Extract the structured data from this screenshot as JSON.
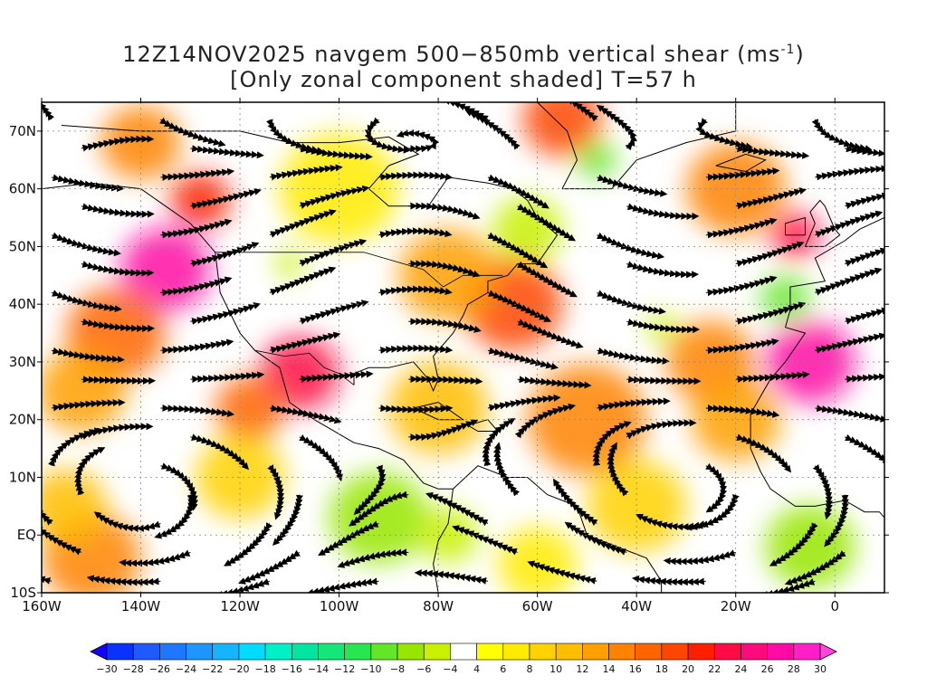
{
  "title": {
    "line1_prefix": "12Z14NOV2025 navgem 500−850mb vertical shear (ms",
    "line1_sup": "-1",
    "line1_suffix": ")",
    "line2": "[Only zonal component shaded] T=57 h"
  },
  "map": {
    "lon_range": [
      -160,
      10
    ],
    "lat_range": [
      -10,
      75
    ],
    "x_ticks": [
      {
        "value": -160,
        "label": "160W"
      },
      {
        "value": -140,
        "label": "140W"
      },
      {
        "value": -120,
        "label": "120W"
      },
      {
        "value": -100,
        "label": "100W"
      },
      {
        "value": -80,
        "label": "80W"
      },
      {
        "value": -60,
        "label": "60W"
      },
      {
        "value": -40,
        "label": "40W"
      },
      {
        "value": -20,
        "label": "20W"
      },
      {
        "value": 0,
        "label": "0"
      }
    ],
    "y_ticks": [
      {
        "value": 70,
        "label": "70N"
      },
      {
        "value": 60,
        "label": "60N"
      },
      {
        "value": 50,
        "label": "50N"
      },
      {
        "value": 40,
        "label": "40N"
      },
      {
        "value": 30,
        "label": "30N"
      },
      {
        "value": 20,
        "label": "20N"
      },
      {
        "value": 10,
        "label": "10N"
      },
      {
        "value": 0,
        "label": "EQ"
      },
      {
        "value": -10,
        "label": "10S"
      }
    ],
    "grid": true,
    "shaded_field": "zonal component of 500-850mb vertical shear"
  },
  "colorbar": {
    "levels": [
      -30,
      -28,
      -26,
      -24,
      -22,
      -20,
      -18,
      -16,
      -14,
      -12,
      -10,
      -8,
      -6,
      -4,
      4,
      6,
      8,
      10,
      12,
      14,
      16,
      18,
      20,
      22,
      24,
      26,
      28,
      30
    ],
    "labels": [
      "-30",
      "-28",
      "-26",
      "-24",
      "-22",
      "-20",
      "-18",
      "-16",
      "-14",
      "-12",
      "-10",
      "-8",
      "-6",
      "-4",
      "4",
      "6",
      "8",
      "10",
      "12",
      "14",
      "16",
      "18",
      "20",
      "22",
      "24",
      "26",
      "28",
      "30"
    ],
    "colors": [
      "#1400ff",
      "#0a32ff",
      "#1e5aff",
      "#1e78ff",
      "#1e96ff",
      "#14b4ff",
      "#00dcff",
      "#00f0c8",
      "#00e6a0",
      "#14e678",
      "#28e650",
      "#64e628",
      "#96e600",
      "#c8f000",
      "#ffffff",
      "#ffff00",
      "#ffeb00",
      "#ffd200",
      "#ffbe00",
      "#ffa000",
      "#ff8200",
      "#ff6400",
      "#ff4600",
      "#ff1e00",
      "#ff0a46",
      "#ff0a7d",
      "#ff0aa5",
      "#ff1ec8",
      "#ff46dc"
    ]
  },
  "features": {
    "shade_blobs": [
      {
        "lon": -135,
        "lat": 46,
        "r": 9,
        "value": 26
      },
      {
        "lon": -128,
        "lat": 58,
        "r": 6,
        "value": 20
      },
      {
        "lon": -145,
        "lat": 35,
        "r": 10,
        "value": 16
      },
      {
        "lon": -152,
        "lat": 25,
        "r": 9,
        "value": 12
      },
      {
        "lon": -108,
        "lat": 28,
        "r": 8,
        "value": 22
      },
      {
        "lon": -118,
        "lat": 22,
        "r": 7,
        "value": 16
      },
      {
        "lon": -65,
        "lat": 40,
        "r": 10,
        "value": 18
      },
      {
        "lon": -78,
        "lat": 45,
        "r": 10,
        "value": 12
      },
      {
        "lon": -55,
        "lat": 72,
        "r": 8,
        "value": 18
      },
      {
        "lon": -20,
        "lat": 60,
        "r": 10,
        "value": 14
      },
      {
        "lon": -8,
        "lat": 52,
        "r": 5,
        "value": 22
      },
      {
        "lon": -5,
        "lat": 30,
        "r": 9,
        "value": 26
      },
      {
        "lon": -25,
        "lat": 30,
        "r": 9,
        "value": 14
      },
      {
        "lon": -80,
        "lat": 22,
        "r": 10,
        "value": 10
      },
      {
        "lon": -50,
        "lat": 20,
        "r": 12,
        "value": 14
      },
      {
        "lon": -20,
        "lat": 20,
        "r": 9,
        "value": 12
      },
      {
        "lon": -150,
        "lat": -4,
        "r": 10,
        "value": 14
      },
      {
        "lon": -155,
        "lat": 5,
        "r": 8,
        "value": 10
      },
      {
        "lon": -92,
        "lat": 3,
        "r": 10,
        "value": -8
      },
      {
        "lon": -78,
        "lat": 0,
        "r": 6,
        "value": -6
      },
      {
        "lon": -5,
        "lat": -2,
        "r": 9,
        "value": -8
      },
      {
        "lon": -62,
        "lat": 53,
        "r": 7,
        "value": -6
      },
      {
        "lon": -48,
        "lat": 65,
        "r": 4,
        "value": -10
      },
      {
        "lon": -10,
        "lat": 41,
        "r": 5,
        "value": -10
      },
      {
        "lon": -110,
        "lat": 47,
        "r": 3,
        "value": -6
      },
      {
        "lon": -35,
        "lat": 36,
        "r": 3,
        "value": -6
      },
      {
        "lon": -140,
        "lat": 68,
        "r": 8,
        "value": 14
      },
      {
        "lon": -100,
        "lat": 60,
        "r": 12,
        "value": 6
      },
      {
        "lon": -40,
        "lat": 5,
        "r": 10,
        "value": 8
      },
      {
        "lon": -120,
        "lat": 10,
        "r": 9,
        "value": 8
      },
      {
        "lon": -60,
        "lat": -5,
        "r": 8,
        "value": 6
      }
    ]
  }
}
